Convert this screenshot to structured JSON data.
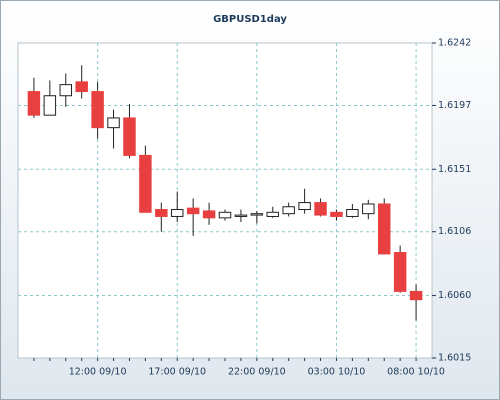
{
  "chart_data": {
    "type": "candlestick",
    "title": "GBPUSD1day",
    "categories": [
      null,
      null,
      null,
      null,
      "12:00 09/10",
      null,
      null,
      null,
      null,
      "17:00 09/10",
      null,
      null,
      null,
      null,
      "22:00 09/10",
      null,
      null,
      null,
      null,
      "03:00 10/10",
      null,
      null,
      null,
      null,
      "08:00 10/10"
    ],
    "series": [
      {
        "up_color": "#ffffff",
        "down_color": "#e84040",
        "open": [
          1.6207,
          1.619,
          1.6204,
          1.6214,
          1.6207,
          1.6181,
          1.6188,
          1.6161,
          1.6122,
          1.6117,
          1.6123,
          1.6121,
          1.6116,
          1.6117,
          1.6118,
          1.6117,
          1.6119,
          1.6122,
          1.6127,
          1.612,
          1.6117,
          1.6119,
          1.6126,
          1.6091,
          1.6063
        ],
        "high": [
          1.6217,
          1.6215,
          1.622,
          1.6226,
          1.6214,
          1.6194,
          1.6198,
          1.6168,
          1.6127,
          1.6135,
          1.613,
          1.6127,
          1.6122,
          1.6122,
          1.6121,
          1.6124,
          1.6127,
          1.6137,
          1.613,
          1.6122,
          1.6126,
          1.6129,
          1.613,
          1.6096,
          1.6068
        ],
        "low": [
          1.6188,
          1.619,
          1.6196,
          1.6202,
          1.6173,
          1.6166,
          1.6159,
          1.612,
          1.6106,
          1.6113,
          1.6103,
          1.6111,
          1.6114,
          1.6113,
          1.6112,
          1.6116,
          1.6117,
          1.6119,
          1.6117,
          1.6114,
          1.6116,
          1.6115,
          1.609,
          1.6062,
          1.6042
        ],
        "close": [
          1.619,
          1.6204,
          1.6212,
          1.6207,
          1.6181,
          1.6188,
          1.6161,
          1.612,
          1.6117,
          1.6122,
          1.6119,
          1.6116,
          1.612,
          1.6118,
          1.6119,
          1.612,
          1.6124,
          1.6127,
          1.6118,
          1.6117,
          1.6122,
          1.6126,
          1.609,
          1.6063,
          1.6057
        ]
      }
    ],
    "ylim": [
      1.6015,
      1.6242
    ],
    "yticks": [
      1.6015,
      {
        "value": 1.606,
        "label": "1.6060"
      },
      1.6106,
      1.6151,
      1.6197,
      1.6242
    ],
    "grid": true
  }
}
